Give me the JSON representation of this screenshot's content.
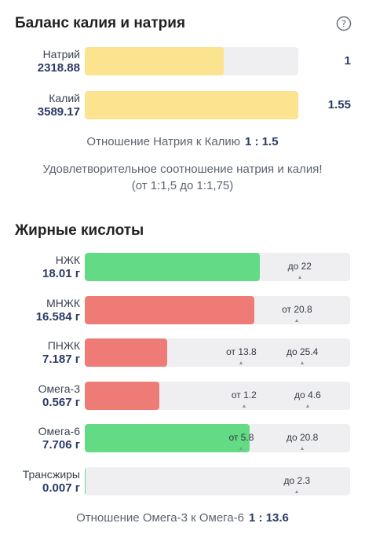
{
  "balance": {
    "title": "Баланс калия и натрия",
    "help_icon": "question-circle-icon",
    "rows": [
      {
        "name": "Натрий",
        "value": "2318.88",
        "fraction": 0.65,
        "side": "1",
        "color": "#fbe38f"
      },
      {
        "name": "Калий",
        "value": "3589.17",
        "fraction": 1.0,
        "side": "1.55",
        "color": "#fbe38f"
      }
    ],
    "ratio_label": "Отношение Натрия к Калию",
    "ratio_value": "1 : 1.5",
    "note_line1": "Удовлетворительное соотношение натрия и калия!",
    "note_line2": "(от 1:1,5 до 1:1,75)"
  },
  "fats": {
    "title": "Жирные кислоты",
    "rows": [
      {
        "name": "НЖК",
        "value": "18.01 г",
        "fill": 0.66,
        "color": "#63da84",
        "markers": [
          {
            "label": "до 22",
            "pos": 0.81
          }
        ]
      },
      {
        "name": "МНЖК",
        "value": "16.584 г",
        "fill": 0.64,
        "color": "#ee7b76",
        "markers": [
          {
            "label": "от 20.8",
            "pos": 0.8
          }
        ]
      },
      {
        "name": "ПНЖК",
        "value": "7.187 г",
        "fill": 0.31,
        "color": "#ee7b76",
        "markers": [
          {
            "label": "от 13.8",
            "pos": 0.59
          },
          {
            "label": "до 25.4",
            "pos": 0.82
          }
        ]
      },
      {
        "name": "Омега-3",
        "value": "0.567 г",
        "fill": 0.28,
        "color": "#ee7b76",
        "markers": [
          {
            "label": "от 1.2",
            "pos": 0.6
          },
          {
            "label": "до 4.6",
            "pos": 0.84
          }
        ]
      },
      {
        "name": "Омега-6",
        "value": "7.706 г",
        "fill": 0.62,
        "color": "#63da84",
        "markers": [
          {
            "label": "от 5.8",
            "pos": 0.59
          },
          {
            "label": "до 20.8",
            "pos": 0.82
          }
        ]
      },
      {
        "name": "Трансжиры",
        "value": "0.007 г",
        "fill": 0.004,
        "color": "#63da84",
        "markers": [
          {
            "label": "до 2.3",
            "pos": 0.8
          }
        ]
      }
    ],
    "ratio_label": "Отношение Омега-3 к Омега-6",
    "ratio_value": "1 : 13.6"
  }
}
